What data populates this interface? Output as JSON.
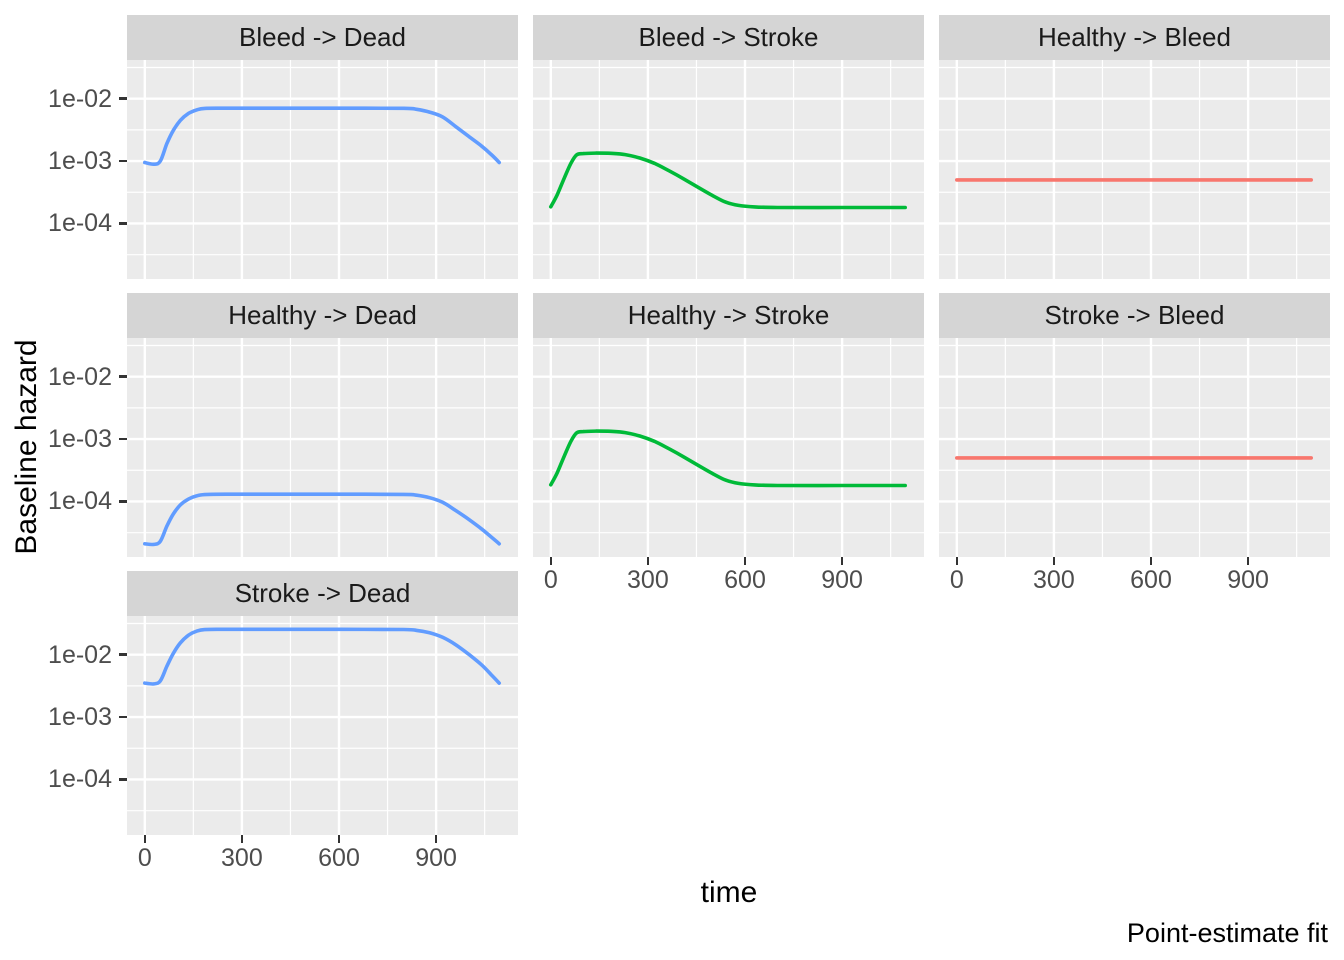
{
  "chart_data": {
    "type": "line",
    "facet_variable": "transition",
    "xlabel": "time",
    "ylabel": "Baseline hazard",
    "caption": "Point-estimate fit",
    "y_scale": "log10",
    "grid": true,
    "legend_position": "none",
    "xlim": [
      -55,
      1153
    ],
    "ylim_log10": [
      -4.89,
      -1.38
    ],
    "x_ticks": [
      0,
      300,
      600,
      900
    ],
    "x_minor_ticks": [
      150,
      450,
      750,
      1050
    ],
    "y_ticks": [
      {
        "label": "1e-02",
        "value": 0.01
      },
      {
        "label": "1e-03",
        "value": 0.001
      },
      {
        "label": "1e-04",
        "value": 0.0001
      }
    ],
    "y_minor_log10": [
      -1.5,
      -2.5,
      -3.5,
      -4.5
    ],
    "colors": {
      "to_dead": "#619CFF",
      "to_stroke": "#00BA38",
      "to_bleed": "#F8766D",
      "panel_bg": "#EBEBEB",
      "strip_bg": "#D5D5D5",
      "grid": "#FFFFFF",
      "tick_label": "#4D4D4D",
      "strip_text": "#1A1A1A"
    },
    "facets": [
      {
        "title": "Bleed -> Dead",
        "row": 0,
        "col": 0,
        "color": "#619CFF",
        "show_y_axis": true,
        "show_x_axis": false,
        "points": [
          [
            0,
            0.00095
          ],
          [
            28,
            0.00089
          ],
          [
            48,
            0.001
          ],
          [
            68,
            0.0019
          ],
          [
            88,
            0.0031
          ],
          [
            110,
            0.0045
          ],
          [
            135,
            0.0058
          ],
          [
            160,
            0.0066
          ],
          [
            185,
            0.00698
          ],
          [
            250,
            0.00705
          ],
          [
            420,
            0.00705
          ],
          [
            600,
            0.00705
          ],
          [
            800,
            0.007
          ],
          [
            840,
            0.00675
          ],
          [
            880,
            0.0061
          ],
          [
            920,
            0.0051
          ],
          [
            960,
            0.0036
          ],
          [
            1000,
            0.0025
          ],
          [
            1040,
            0.00175
          ],
          [
            1070,
            0.00128
          ],
          [
            1095,
            0.00095
          ]
        ]
      },
      {
        "title": "Bleed -> Stroke",
        "row": 0,
        "col": 1,
        "color": "#00BA38",
        "show_y_axis": false,
        "show_x_axis": false,
        "points": [
          [
            0,
            0.000185
          ],
          [
            20,
            0.00029
          ],
          [
            42,
            0.00054
          ],
          [
            62,
            0.00092
          ],
          [
            80,
            0.00126
          ],
          [
            100,
            0.00132
          ],
          [
            140,
            0.00134
          ],
          [
            185,
            0.00133
          ],
          [
            230,
            0.00127
          ],
          [
            275,
            0.00112
          ],
          [
            320,
            0.00092
          ],
          [
            365,
            0.0007
          ],
          [
            410,
            0.00052
          ],
          [
            455,
            0.00038
          ],
          [
            500,
            0.00028
          ],
          [
            540,
            0.00022
          ],
          [
            580,
            0.000195
          ],
          [
            630,
            0.000184
          ],
          [
            700,
            0.00018
          ],
          [
            900,
            0.00018
          ],
          [
            1095,
            0.00018
          ]
        ]
      },
      {
        "title": "Healthy -> Bleed",
        "row": 0,
        "col": 2,
        "color": "#F8766D",
        "show_y_axis": false,
        "show_x_axis": false,
        "points": [
          [
            0,
            0.0005
          ],
          [
            550,
            0.0005
          ],
          [
            1095,
            0.0005
          ]
        ]
      },
      {
        "title": "Healthy -> Dead",
        "row": 1,
        "col": 0,
        "color": "#619CFF",
        "show_y_axis": true,
        "show_x_axis": false,
        "points": [
          [
            0,
            2.1e-05
          ],
          [
            28,
            2.05e-05
          ],
          [
            48,
            2.3e-05
          ],
          [
            68,
            4e-05
          ],
          [
            88,
            6.3e-05
          ],
          [
            110,
            8.8e-05
          ],
          [
            135,
            0.000109
          ],
          [
            160,
            0.000123
          ],
          [
            185,
            0.000129
          ],
          [
            250,
            0.000131
          ],
          [
            420,
            0.000131
          ],
          [
            600,
            0.000131
          ],
          [
            800,
            0.00013
          ],
          [
            840,
            0.000126
          ],
          [
            880,
            0.000115
          ],
          [
            920,
            9.7e-05
          ],
          [
            960,
            7.2e-05
          ],
          [
            1000,
            5.2e-05
          ],
          [
            1040,
            3.65e-05
          ],
          [
            1070,
            2.7e-05
          ],
          [
            1095,
            2.1e-05
          ]
        ]
      },
      {
        "title": "Healthy -> Stroke",
        "row": 1,
        "col": 1,
        "color": "#00BA38",
        "show_y_axis": false,
        "show_x_axis": true,
        "points": [
          [
            0,
            0.000185
          ],
          [
            20,
            0.00029
          ],
          [
            42,
            0.00054
          ],
          [
            62,
            0.00092
          ],
          [
            80,
            0.00126
          ],
          [
            100,
            0.00132
          ],
          [
            140,
            0.00134
          ],
          [
            185,
            0.00133
          ],
          [
            230,
            0.00127
          ],
          [
            275,
            0.00112
          ],
          [
            320,
            0.00092
          ],
          [
            365,
            0.0007
          ],
          [
            410,
            0.00052
          ],
          [
            455,
            0.00038
          ],
          [
            500,
            0.00028
          ],
          [
            540,
            0.00022
          ],
          [
            580,
            0.000195
          ],
          [
            630,
            0.000184
          ],
          [
            700,
            0.00018
          ],
          [
            900,
            0.00018
          ],
          [
            1095,
            0.00018
          ]
        ]
      },
      {
        "title": "Stroke -> Bleed",
        "row": 1,
        "col": 2,
        "color": "#F8766D",
        "show_y_axis": false,
        "show_x_axis": true,
        "points": [
          [
            0,
            0.0005
          ],
          [
            550,
            0.0005
          ],
          [
            1095,
            0.0005
          ]
        ]
      },
      {
        "title": "Stroke -> Dead",
        "row": 2,
        "col": 0,
        "color": "#619CFF",
        "show_y_axis": true,
        "show_x_axis": true,
        "points": [
          [
            0,
            0.0035
          ],
          [
            28,
            0.0034
          ],
          [
            48,
            0.0038
          ],
          [
            68,
            0.0065
          ],
          [
            88,
            0.0105
          ],
          [
            110,
            0.0155
          ],
          [
            135,
            0.0205
          ],
          [
            160,
            0.0238
          ],
          [
            185,
            0.0252
          ],
          [
            250,
            0.0255
          ],
          [
            420,
            0.0255
          ],
          [
            600,
            0.0255
          ],
          [
            800,
            0.0253
          ],
          [
            840,
            0.0245
          ],
          [
            880,
            0.0225
          ],
          [
            920,
            0.019
          ],
          [
            960,
            0.0145
          ],
          [
            1000,
            0.0102
          ],
          [
            1040,
            0.0069
          ],
          [
            1070,
            0.0048
          ],
          [
            1095,
            0.0035
          ]
        ]
      }
    ]
  }
}
